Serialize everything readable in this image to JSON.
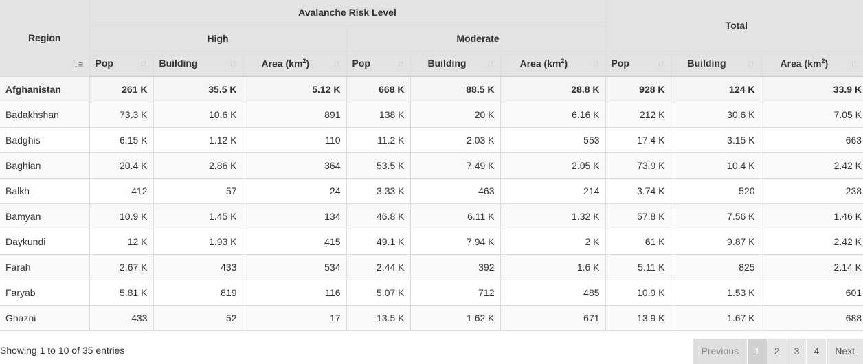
{
  "headers": {
    "region": "Region",
    "avalanche_group": "Avalanche Risk Level",
    "high": "High",
    "moderate": "Moderate",
    "total": "Total",
    "pop": "Pop",
    "building": "Building",
    "area": "Area (km",
    "area_sup": "2",
    "area_close": ")"
  },
  "rows": [
    {
      "region": "Afghanistan",
      "c1": "261 K",
      "c2": "35.5 K",
      "c3": "5.12 K",
      "c4": "668 K",
      "c5": "88.5 K",
      "c6": "28.8 K",
      "c7": "928 K",
      "c8": "124 K",
      "c9": "33.9 K"
    },
    {
      "region": "Badakhshan",
      "c1": "73.3 K",
      "c2": "10.6 K",
      "c3": "891",
      "c4": "138 K",
      "c5": "20 K",
      "c6": "6.16 K",
      "c7": "212 K",
      "c8": "30.6 K",
      "c9": "7.05 K"
    },
    {
      "region": "Badghis",
      "c1": "6.15 K",
      "c2": "1.12 K",
      "c3": "110",
      "c4": "11.2 K",
      "c5": "2.03 K",
      "c6": "553",
      "c7": "17.4 K",
      "c8": "3.15 K",
      "c9": "663"
    },
    {
      "region": "Baghlan",
      "c1": "20.4 K",
      "c2": "2.86 K",
      "c3": "364",
      "c4": "53.5 K",
      "c5": "7.49 K",
      "c6": "2.05 K",
      "c7": "73.9 K",
      "c8": "10.4 K",
      "c9": "2.42 K"
    },
    {
      "region": "Balkh",
      "c1": "412",
      "c2": "57",
      "c3": "24",
      "c4": "3.33 K",
      "c5": "463",
      "c6": "214",
      "c7": "3.74 K",
      "c8": "520",
      "c9": "238"
    },
    {
      "region": "Bamyan",
      "c1": "10.9 K",
      "c2": "1.45 K",
      "c3": "134",
      "c4": "46.8 K",
      "c5": "6.11 K",
      "c6": "1.32 K",
      "c7": "57.8 K",
      "c8": "7.56 K",
      "c9": "1.46 K"
    },
    {
      "region": "Daykundi",
      "c1": "12 K",
      "c2": "1.93 K",
      "c3": "415",
      "c4": "49.1 K",
      "c5": "7.94 K",
      "c6": "2 K",
      "c7": "61 K",
      "c8": "9.87 K",
      "c9": "2.42 K"
    },
    {
      "region": "Farah",
      "c1": "2.67 K",
      "c2": "433",
      "c3": "534",
      "c4": "2.44 K",
      "c5": "392",
      "c6": "1.6 K",
      "c7": "5.11 K",
      "c8": "825",
      "c9": "2.14 K"
    },
    {
      "region": "Faryab",
      "c1": "5.81 K",
      "c2": "819",
      "c3": "116",
      "c4": "5.07 K",
      "c5": "712",
      "c6": "485",
      "c7": "10.9 K",
      "c8": "1.53 K",
      "c9": "601"
    },
    {
      "region": "Ghazni",
      "c1": "433",
      "c2": "52",
      "c3": "17",
      "c4": "13.5 K",
      "c5": "1.62 K",
      "c6": "671",
      "c7": "13.9 K",
      "c8": "1.67 K",
      "c9": "688"
    }
  ],
  "footer": {
    "info": "Showing 1 to 10 of 35 entries",
    "previous": "Previous",
    "pages": [
      "1",
      "2",
      "3",
      "4"
    ],
    "next": "Next"
  }
}
